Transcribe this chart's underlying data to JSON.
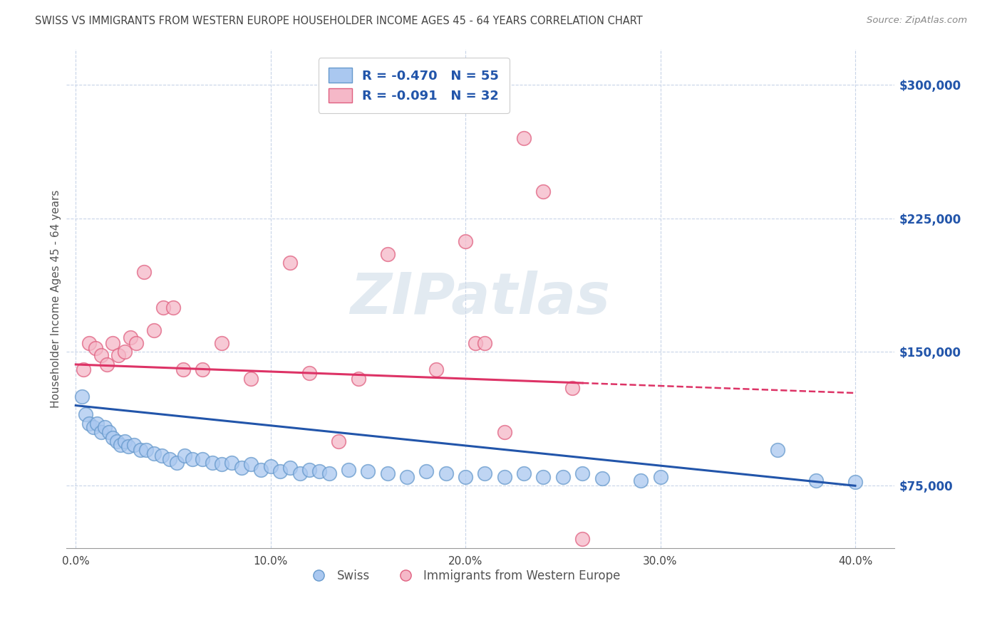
{
  "title": "SWISS VS IMMIGRANTS FROM WESTERN EUROPE HOUSEHOLDER INCOME AGES 45 - 64 YEARS CORRELATION CHART",
  "source": "Source: ZipAtlas.com",
  "ylabel": "Householder Income Ages 45 - 64 years",
  "xlabel_vals": [
    0.0,
    10.0,
    20.0,
    30.0,
    40.0
  ],
  "ylabel_vals": [
    75000,
    150000,
    225000,
    300000
  ],
  "xlim": [
    -0.5,
    42.0
  ],
  "ylim": [
    40000,
    320000
  ],
  "swiss_R": "-0.470",
  "swiss_N": 55,
  "imm_R": "-0.091",
  "imm_N": 32,
  "swiss_color": "#aac8f0",
  "imm_color": "#f5b8c8",
  "swiss_edge_color": "#6699cc",
  "imm_edge_color": "#e06080",
  "swiss_line_color": "#2255aa",
  "imm_line_color": "#dd3366",
  "background_color": "#ffffff",
  "grid_color": "#c8d4e8",
  "title_color": "#444444",
  "axis_label_color": "#2255aa",
  "watermark_color": "#d0dce8",
  "swiss_x": [
    0.3,
    0.5,
    0.7,
    0.9,
    1.1,
    1.3,
    1.5,
    1.7,
    1.9,
    2.1,
    2.3,
    2.5,
    2.7,
    3.0,
    3.3,
    3.6,
    4.0,
    4.4,
    4.8,
    5.2,
    5.6,
    6.0,
    6.5,
    7.0,
    7.5,
    8.0,
    8.5,
    9.0,
    9.5,
    10.0,
    10.5,
    11.0,
    11.5,
    12.0,
    12.5,
    13.0,
    14.0,
    15.0,
    16.0,
    17.0,
    18.0,
    19.0,
    20.0,
    21.0,
    22.0,
    23.0,
    24.0,
    25.0,
    26.0,
    27.0,
    29.0,
    30.0,
    36.0,
    38.0,
    40.0
  ],
  "swiss_y": [
    125000,
    115000,
    110000,
    108000,
    110000,
    105000,
    108000,
    105000,
    102000,
    100000,
    98000,
    100000,
    97000,
    98000,
    95000,
    95000,
    93000,
    92000,
    90000,
    88000,
    92000,
    90000,
    90000,
    88000,
    87000,
    88000,
    85000,
    87000,
    84000,
    86000,
    83000,
    85000,
    82000,
    84000,
    83000,
    82000,
    84000,
    83000,
    82000,
    80000,
    83000,
    82000,
    80000,
    82000,
    80000,
    82000,
    80000,
    80000,
    82000,
    79000,
    78000,
    80000,
    95000,
    78000,
    77000
  ],
  "imm_x": [
    0.4,
    0.7,
    1.0,
    1.3,
    1.6,
    1.9,
    2.2,
    2.5,
    2.8,
    3.1,
    3.5,
    4.0,
    4.5,
    5.0,
    5.5,
    6.5,
    7.5,
    9.0,
    11.0,
    12.0,
    13.5,
    14.5,
    16.0,
    18.5,
    20.5,
    21.0,
    22.0,
    23.0,
    24.0,
    26.0,
    20.0,
    25.5
  ],
  "imm_y": [
    140000,
    155000,
    152000,
    148000,
    143000,
    155000,
    148000,
    150000,
    158000,
    155000,
    195000,
    162000,
    175000,
    175000,
    140000,
    140000,
    155000,
    135000,
    200000,
    138000,
    100000,
    135000,
    205000,
    140000,
    155000,
    155000,
    105000,
    270000,
    240000,
    45000,
    212000,
    130000
  ],
  "swiss_trend_x0": 0.0,
  "swiss_trend_y0": 120000,
  "swiss_trend_x1": 40.0,
  "swiss_trend_y1": 75000,
  "imm_trend_x0": 0.0,
  "imm_trend_y0": 143000,
  "imm_trend_x1": 40.0,
  "imm_trend_y1": 127000,
  "imm_solid_end": 26.0
}
